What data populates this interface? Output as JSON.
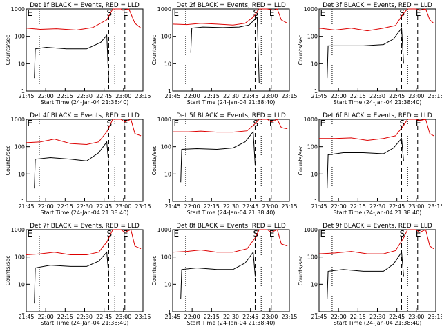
{
  "colors": {
    "events": "#000000",
    "lld": "#dd0000",
    "axis": "#000000",
    "background": "#ffffff"
  },
  "chart_data": [
    {
      "type": "line",
      "title": "Det 1f BLACK = Events, RED = LLD",
      "xlabel": "Start Time (24-Jan-04 21:38:40)",
      "ylabel": "Counts/sec",
      "x_ticks": [
        "21:45",
        "22:00",
        "22:15",
        "22:30",
        "22:45",
        "23:00",
        "23:15"
      ],
      "y_ticks": [
        "1",
        "10",
        "100",
        "1000"
      ],
      "y_scale": "log",
      "ylim": [
        1,
        1000
      ],
      "markers": [
        "E",
        "S",
        "E"
      ],
      "series": [
        {
          "color": "red",
          "values": [
            [
              0,
              200
            ],
            [
              7,
              180
            ],
            [
              15,
              190
            ],
            [
              25,
              170
            ],
            [
              33,
              210
            ],
            [
              40,
              400
            ],
            [
              43,
              1000
            ],
            [
              47,
              1000
            ],
            [
              48,
              900
            ],
            [
              51,
              1000
            ],
            [
              54,
              300
            ],
            [
              57,
              200
            ]
          ]
        },
        {
          "color": "black",
          "values": [
            [
              4,
              3
            ],
            [
              4.5,
              35
            ],
            [
              10,
              40
            ],
            [
              20,
              35
            ],
            [
              30,
              35
            ],
            [
              37,
              60
            ],
            [
              40,
              110
            ],
            [
              41,
              2
            ]
          ]
        }
      ]
    },
    {
      "type": "line",
      "title": "Det 2f BLACK = Events, RED = LLD",
      "xlabel": "Start Time (24-Jan-04 21:38:40)",
      "ylabel": "Counts/sec",
      "x_ticks": [
        "21:45",
        "22:00",
        "22:15",
        "22:30",
        "22:45",
        "23:00",
        "23:15"
      ],
      "y_ticks": [
        "1",
        "10",
        "100",
        "1000"
      ],
      "y_scale": "log",
      "ylim": [
        1,
        1000
      ],
      "markers": [
        "E",
        "S",
        "E"
      ],
      "series": [
        {
          "color": "red",
          "values": [
            [
              0,
              280
            ],
            [
              7,
              270
            ],
            [
              14,
              300
            ],
            [
              22,
              280
            ],
            [
              30,
              260
            ],
            [
              36,
              300
            ],
            [
              40,
              500
            ],
            [
              43,
              1000
            ],
            [
              47,
              1000
            ],
            [
              50,
              900
            ],
            [
              52,
              1000
            ],
            [
              54,
              400
            ],
            [
              57,
              300
            ]
          ]
        },
        {
          "color": "black",
          "values": [
            [
              9,
              25
            ],
            [
              9.5,
              200
            ],
            [
              15,
              220
            ],
            [
              25,
              210
            ],
            [
              33,
              220
            ],
            [
              38,
              260
            ],
            [
              42,
              500
            ],
            [
              43,
              2
            ]
          ]
        }
      ]
    },
    {
      "type": "line",
      "title": "Det 3f BLACK = Events, RED = LLD",
      "xlabel": "Start Time (24-Jan-04 21:38:40)",
      "ylabel": "Counts/sec",
      "x_ticks": [
        "21:45",
        "22:00",
        "22:15",
        "22:30",
        "22:45",
        "23:00",
        "23:15"
      ],
      "y_ticks": [
        "1",
        "10",
        "100",
        "1000"
      ],
      "y_scale": "log",
      "ylim": [
        1,
        1000
      ],
      "markers": [
        "E",
        "S",
        "E"
      ],
      "series": [
        {
          "color": "red",
          "values": [
            [
              0,
              200
            ],
            [
              8,
              170
            ],
            [
              16,
              200
            ],
            [
              24,
              160
            ],
            [
              32,
              200
            ],
            [
              38,
              250
            ],
            [
              42,
              700
            ],
            [
              44,
              1000
            ],
            [
              48,
              1000
            ],
            [
              50,
              900
            ],
            [
              53,
              1000
            ],
            [
              55,
              400
            ],
            [
              57,
              300
            ]
          ]
        },
        {
          "color": "black",
          "values": [
            [
              4,
              3
            ],
            [
              4.5,
              45
            ],
            [
              12,
              45
            ],
            [
              22,
              45
            ],
            [
              32,
              50
            ],
            [
              37,
              80
            ],
            [
              41,
              200
            ],
            [
              42,
              10
            ]
          ]
        }
      ]
    },
    {
      "type": "line",
      "title": "Det 4f BLACK = Events, RED = LLD",
      "xlabel": "Start Time (24-Jan-04 21:38:40)",
      "ylabel": "Counts/sec",
      "x_ticks": [
        "21:45",
        "22:00",
        "22:15",
        "22:30",
        "22:45",
        "23:00",
        "23:15"
      ],
      "y_ticks": [
        "1",
        "10",
        "100",
        "1000"
      ],
      "y_scale": "log",
      "ylim": [
        1,
        1000
      ],
      "markers": [
        "E",
        "S",
        "E"
      ],
      "series": [
        {
          "color": "red",
          "values": [
            [
              0,
              140
            ],
            [
              7,
              150
            ],
            [
              14,
              190
            ],
            [
              22,
              130
            ],
            [
              30,
              120
            ],
            [
              36,
              150
            ],
            [
              40,
              350
            ],
            [
              43,
              1000
            ],
            [
              47,
              1000
            ],
            [
              49,
              800
            ],
            [
              52,
              1000
            ],
            [
              54,
              300
            ],
            [
              57,
              250
            ]
          ]
        },
        {
          "color": "black",
          "values": [
            [
              4,
              3
            ],
            [
              4.5,
              35
            ],
            [
              12,
              40
            ],
            [
              22,
              35
            ],
            [
              30,
              30
            ],
            [
              36,
              60
            ],
            [
              40,
              150
            ],
            [
              41,
              20
            ]
          ]
        }
      ]
    },
    {
      "type": "line",
      "title": "Det 5f BLACK = Events, RED = LLD",
      "xlabel": "Start Time (24-Jan-04 21:38:40)",
      "ylabel": "Counts/sec",
      "x_ticks": [
        "21:45",
        "22:00",
        "22:15",
        "22:30",
        "22:45",
        "23:00",
        "23:15"
      ],
      "y_ticks": [
        "1",
        "10",
        "100",
        "1000"
      ],
      "y_scale": "log",
      "ylim": [
        1,
        1000
      ],
      "markers": [
        "E",
        "S",
        "E"
      ],
      "series": [
        {
          "color": "red",
          "values": [
            [
              0,
              350
            ],
            [
              8,
              350
            ],
            [
              14,
              370
            ],
            [
              22,
              340
            ],
            [
              30,
              340
            ],
            [
              37,
              380
            ],
            [
              41,
              700
            ],
            [
              43,
              1000
            ],
            [
              47,
              1000
            ],
            [
              49,
              800
            ],
            [
              52,
              1000
            ],
            [
              54,
              500
            ],
            [
              57,
              450
            ]
          ]
        },
        {
          "color": "black",
          "values": [
            [
              4,
              5
            ],
            [
              4.5,
              80
            ],
            [
              12,
              85
            ],
            [
              22,
              80
            ],
            [
              30,
              90
            ],
            [
              36,
              150
            ],
            [
              40,
              350
            ],
            [
              41,
              20
            ]
          ]
        }
      ]
    },
    {
      "type": "line",
      "title": "Det 6f BLACK = Events, RED = LLD",
      "xlabel": "Start Time (24-Jan-04 21:38:40)",
      "ylabel": "Counts/sec",
      "x_ticks": [
        "21:45",
        "22:00",
        "22:15",
        "22:30",
        "22:45",
        "23:00",
        "23:15"
      ],
      "y_ticks": [
        "1",
        "10",
        "100",
        "1000"
      ],
      "y_scale": "log",
      "ylim": [
        1,
        1000
      ],
      "markers": [
        "E",
        "S",
        "E"
      ],
      "series": [
        {
          "color": "red",
          "values": [
            [
              0,
              200
            ],
            [
              8,
              200
            ],
            [
              16,
              210
            ],
            [
              24,
              170
            ],
            [
              32,
              200
            ],
            [
              38,
              250
            ],
            [
              42,
              600
            ],
            [
              44,
              1000
            ],
            [
              48,
              1000
            ],
            [
              50,
              900
            ],
            [
              53,
              1000
            ],
            [
              55,
              300
            ],
            [
              57,
              250
            ]
          ]
        },
        {
          "color": "black",
          "values": [
            [
              4,
              3
            ],
            [
              4.5,
              50
            ],
            [
              12,
              60
            ],
            [
              22,
              60
            ],
            [
              32,
              55
            ],
            [
              37,
              90
            ],
            [
              41,
              200
            ],
            [
              42,
              30
            ]
          ]
        }
      ]
    },
    {
      "type": "line",
      "title": "Det 7f BLACK = Events, RED = LLD",
      "xlabel": "Start Time (24-Jan-04 21:38:40)",
      "ylabel": "Counts/sec",
      "x_ticks": [
        "21:45",
        "22:00",
        "22:15",
        "22:30",
        "22:45",
        "23:00",
        "23:15"
      ],
      "y_ticks": [
        "1",
        "10",
        "100",
        "1000"
      ],
      "y_scale": "log",
      "ylim": [
        1,
        1000
      ],
      "markers": [
        "E",
        "S",
        "E"
      ],
      "series": [
        {
          "color": "red",
          "values": [
            [
              0,
              120
            ],
            [
              7,
              130
            ],
            [
              14,
              150
            ],
            [
              22,
              120
            ],
            [
              30,
              120
            ],
            [
              36,
              150
            ],
            [
              40,
              350
            ],
            [
              43,
              1000
            ],
            [
              47,
              1000
            ],
            [
              49,
              800
            ],
            [
              52,
              1000
            ],
            [
              54,
              250
            ],
            [
              57,
              200
            ]
          ]
        },
        {
          "color": "black",
          "values": [
            [
              4,
              2
            ],
            [
              4.5,
              40
            ],
            [
              12,
              50
            ],
            [
              22,
              45
            ],
            [
              30,
              45
            ],
            [
              36,
              70
            ],
            [
              40,
              150
            ],
            [
              41,
              20
            ]
          ]
        }
      ]
    },
    {
      "type": "line",
      "title": "Det 8f BLACK = Events, RED = LLD",
      "xlabel": "Start Time (24-Jan-04 21:38:40)",
      "ylabel": "Counts/sec",
      "x_ticks": [
        "21:45",
        "22:00",
        "22:15",
        "22:30",
        "22:45",
        "23:00",
        "23:15"
      ],
      "y_ticks": [
        "1",
        "10",
        "100",
        "1000"
      ],
      "y_scale": "log",
      "ylim": [
        1,
        1000
      ],
      "markers": [
        "E",
        "S",
        "E"
      ],
      "series": [
        {
          "color": "red",
          "values": [
            [
              0,
              150
            ],
            [
              7,
              160
            ],
            [
              14,
              180
            ],
            [
              22,
              150
            ],
            [
              30,
              150
            ],
            [
              37,
              200
            ],
            [
              41,
              500
            ],
            [
              43,
              1000
            ],
            [
              47,
              1000
            ],
            [
              49,
              800
            ],
            [
              52,
              1000
            ],
            [
              54,
              300
            ],
            [
              57,
              250
            ]
          ]
        },
        {
          "color": "black",
          "values": [
            [
              4,
              3
            ],
            [
              4.5,
              35
            ],
            [
              12,
              40
            ],
            [
              22,
              35
            ],
            [
              30,
              35
            ],
            [
              36,
              60
            ],
            [
              40,
              150
            ],
            [
              41,
              20
            ]
          ]
        }
      ]
    },
    {
      "type": "line",
      "title": "Det 9f BLACK = Events, RED = LLD",
      "xlabel": "Start Time (24-Jan-04 21:38:40)",
      "ylabel": "Counts/sec",
      "x_ticks": [
        "21:45",
        "22:00",
        "22:15",
        "22:30",
        "22:45",
        "23:00",
        "23:15"
      ],
      "y_ticks": [
        "1",
        "10",
        "100",
        "1000"
      ],
      "y_scale": "log",
      "ylim": [
        1,
        1000
      ],
      "markers": [
        "E",
        "S",
        "E"
      ],
      "series": [
        {
          "color": "red",
          "values": [
            [
              0,
              130
            ],
            [
              8,
              140
            ],
            [
              16,
              160
            ],
            [
              24,
              130
            ],
            [
              32,
              130
            ],
            [
              38,
              170
            ],
            [
              42,
              500
            ],
            [
              44,
              1000
            ],
            [
              48,
              1000
            ],
            [
              50,
              800
            ],
            [
              53,
              1000
            ],
            [
              55,
              250
            ],
            [
              57,
              200
            ]
          ]
        },
        {
          "color": "black",
          "values": [
            [
              4,
              3
            ],
            [
              4.5,
              30
            ],
            [
              12,
              35
            ],
            [
              22,
              30
            ],
            [
              32,
              30
            ],
            [
              37,
              55
            ],
            [
              41,
              150
            ],
            [
              42,
              20
            ]
          ]
        }
      ]
    }
  ]
}
